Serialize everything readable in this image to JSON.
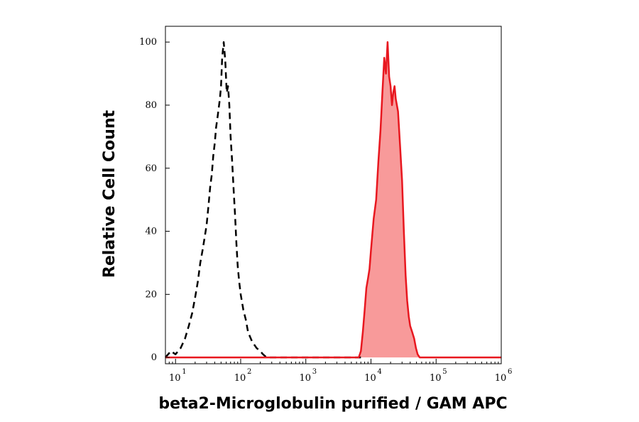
{
  "chart_data": {
    "type": "area",
    "title": "",
    "xlabel": "beta2-Microglobulin purified / GAM APC",
    "ylabel": "Relative Cell Count",
    "x_scale": "log",
    "xlim": [
      7,
      1000000
    ],
    "ylim": [
      -2,
      105
    ],
    "grid": false,
    "legend": "none",
    "x_ticks": [
      {
        "base": "10",
        "exp": "1",
        "value": 10
      },
      {
        "base": "10",
        "exp": "2",
        "value": 100
      },
      {
        "base": "10",
        "exp": "3",
        "value": 1000
      },
      {
        "base": "10",
        "exp": "4",
        "value": 10000
      },
      {
        "base": "10",
        "exp": "5",
        "value": 100000
      },
      {
        "base": "10",
        "exp": "6",
        "value": 1000000
      }
    ],
    "y_ticks": [
      "0",
      "20",
      "40",
      "60",
      "80",
      "100"
    ],
    "series": [
      {
        "style": "dashed",
        "color": "#000000",
        "fill": "none",
        "x": [
          7,
          8.5,
          10,
          12,
          14,
          16,
          18,
          20,
          22,
          24,
          26,
          28,
          30,
          32,
          34,
          36,
          38,
          40,
          42,
          44,
          46,
          48,
          50,
          52,
          55,
          58,
          61,
          64,
          67,
          70,
          74,
          78,
          82,
          86,
          90,
          95,
          100,
          110,
          120,
          130,
          150,
          175,
          200,
          220,
          250,
          300,
          1000,
          7000
        ],
        "y": [
          0,
          2,
          1,
          3,
          6,
          10,
          14,
          19,
          24,
          30,
          34,
          38,
          42,
          48,
          54,
          58,
          64,
          68,
          73,
          76,
          79,
          82,
          86,
          95,
          100,
          94,
          84,
          86,
          80,
          70,
          62,
          53,
          45,
          36,
          29,
          24,
          20,
          15,
          12,
          8,
          5,
          3,
          2,
          1,
          0,
          0,
          0,
          0
        ]
      },
      {
        "style": "solid",
        "color": "#e8171f",
        "fill": "#f89a9a",
        "x": [
          7,
          1000,
          6500,
          7000,
          7500,
          8000,
          8500,
          9000,
          9500,
          10000,
          11000,
          12000,
          13000,
          14000,
          15000,
          16000,
          17000,
          18000,
          19000,
          20000,
          21000,
          22000,
          23000,
          24000,
          26000,
          28000,
          30000,
          32000,
          34000,
          36000,
          38000,
          40000,
          43000,
          46000,
          49000,
          52000,
          56000,
          60000,
          1000000
        ],
        "y": [
          0,
          0,
          0,
          2,
          8,
          15,
          22,
          25,
          28,
          34,
          44,
          50,
          62,
          72,
          84,
          95,
          90,
          100,
          89,
          86,
          80,
          84,
          86,
          82,
          78,
          67,
          56,
          40,
          26,
          18,
          13,
          10,
          8,
          6,
          3,
          1,
          0,
          0,
          0
        ]
      }
    ]
  }
}
